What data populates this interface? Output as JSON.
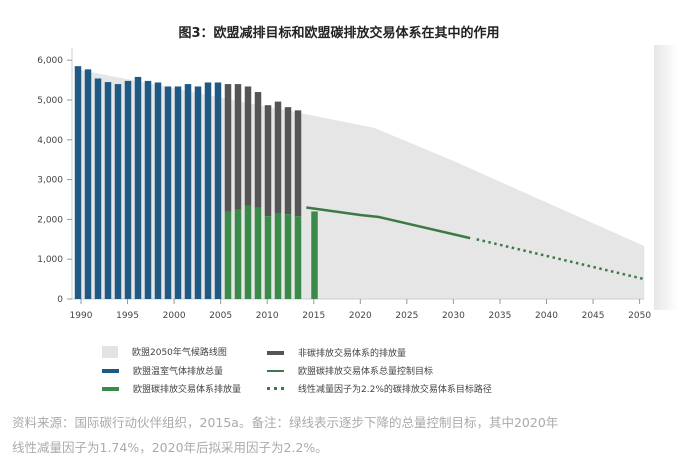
{
  "title": "图3：欧盟减排目标和欧盟碳排放交易体系在其中的作用",
  "chart_data": {
    "type": "bar",
    "title": "图3：欧盟减排目标和欧盟碳排放交易体系在其中的作用",
    "xlabel": "",
    "ylabel": "",
    "ylim": [
      0,
      6000
    ],
    "xlim": [
      1990,
      2050
    ],
    "yticks": [
      "0",
      "1,000",
      "2,000",
      "3,000",
      "4,000",
      "5,000",
      "6,000"
    ],
    "xticks": [
      "1990",
      "1995",
      "2000",
      "2005",
      "2010",
      "2015",
      "2020",
      "2025",
      "2030",
      "2035",
      "2040",
      "2045",
      "2050"
    ],
    "bars": {
      "total_ghg": [
        5850,
        5770,
        5540,
        5450,
        5400,
        5480,
        5580,
        5480,
        5440,
        5340,
        5340,
        5400,
        5340,
        5440,
        5440
      ],
      "stacked_total": [
        5400,
        5400,
        5340,
        5200,
        4870,
        4960,
        4820,
        4740
      ],
      "ets_emissions": [
        2200,
        2250,
        2350,
        2300,
        2080,
        2150,
        2130,
        2080,
        2200
      ]
    },
    "roadmap_area": [
      [
        1990,
        5750
      ],
      [
        2014,
        4650
      ],
      [
        2021.5,
        4300
      ],
      [
        2030,
        3470
      ],
      [
        2050.5,
        1330
      ]
    ],
    "ets_cap_line": [
      [
        2014.2,
        2300
      ],
      [
        2020,
        2110
      ],
      [
        2022,
        2060
      ],
      [
        2031.8,
        1530
      ]
    ],
    "ets_path_2_2": [
      [
        2032.5,
        1500
      ],
      [
        2050.5,
        500
      ]
    ],
    "grid": false
  },
  "colors": {
    "blue": "#1f5a85",
    "gray": "#555555",
    "green": "#3a8a4a",
    "area": "#e6e6e6",
    "line": "#3b7a45"
  },
  "legend": [
    {
      "label": "欧盟2050年气候路线图",
      "kind": "area"
    },
    {
      "label": "非碳排放交易体系的排放量",
      "kind": "gray"
    },
    {
      "label": "欧盟温室气体排放总量",
      "kind": "blue"
    },
    {
      "label": "欧盟碳排放交易体系总量控制目标",
      "kind": "line"
    },
    {
      "label": "欧盟碳排放交易体系排放量",
      "kind": "green"
    },
    {
      "label": "线性减量因子为2.2%的碳排放交易体系目标路径",
      "kind": "dots"
    }
  ],
  "caption": [
    "资料来源：国际碳行动伙伴组织，2015a。备注：绿线表示逐步下降的总量控制目标，其中2020年",
    "线性减量因子为1.74%，2020年后拟采用因子为2.2%。"
  ]
}
